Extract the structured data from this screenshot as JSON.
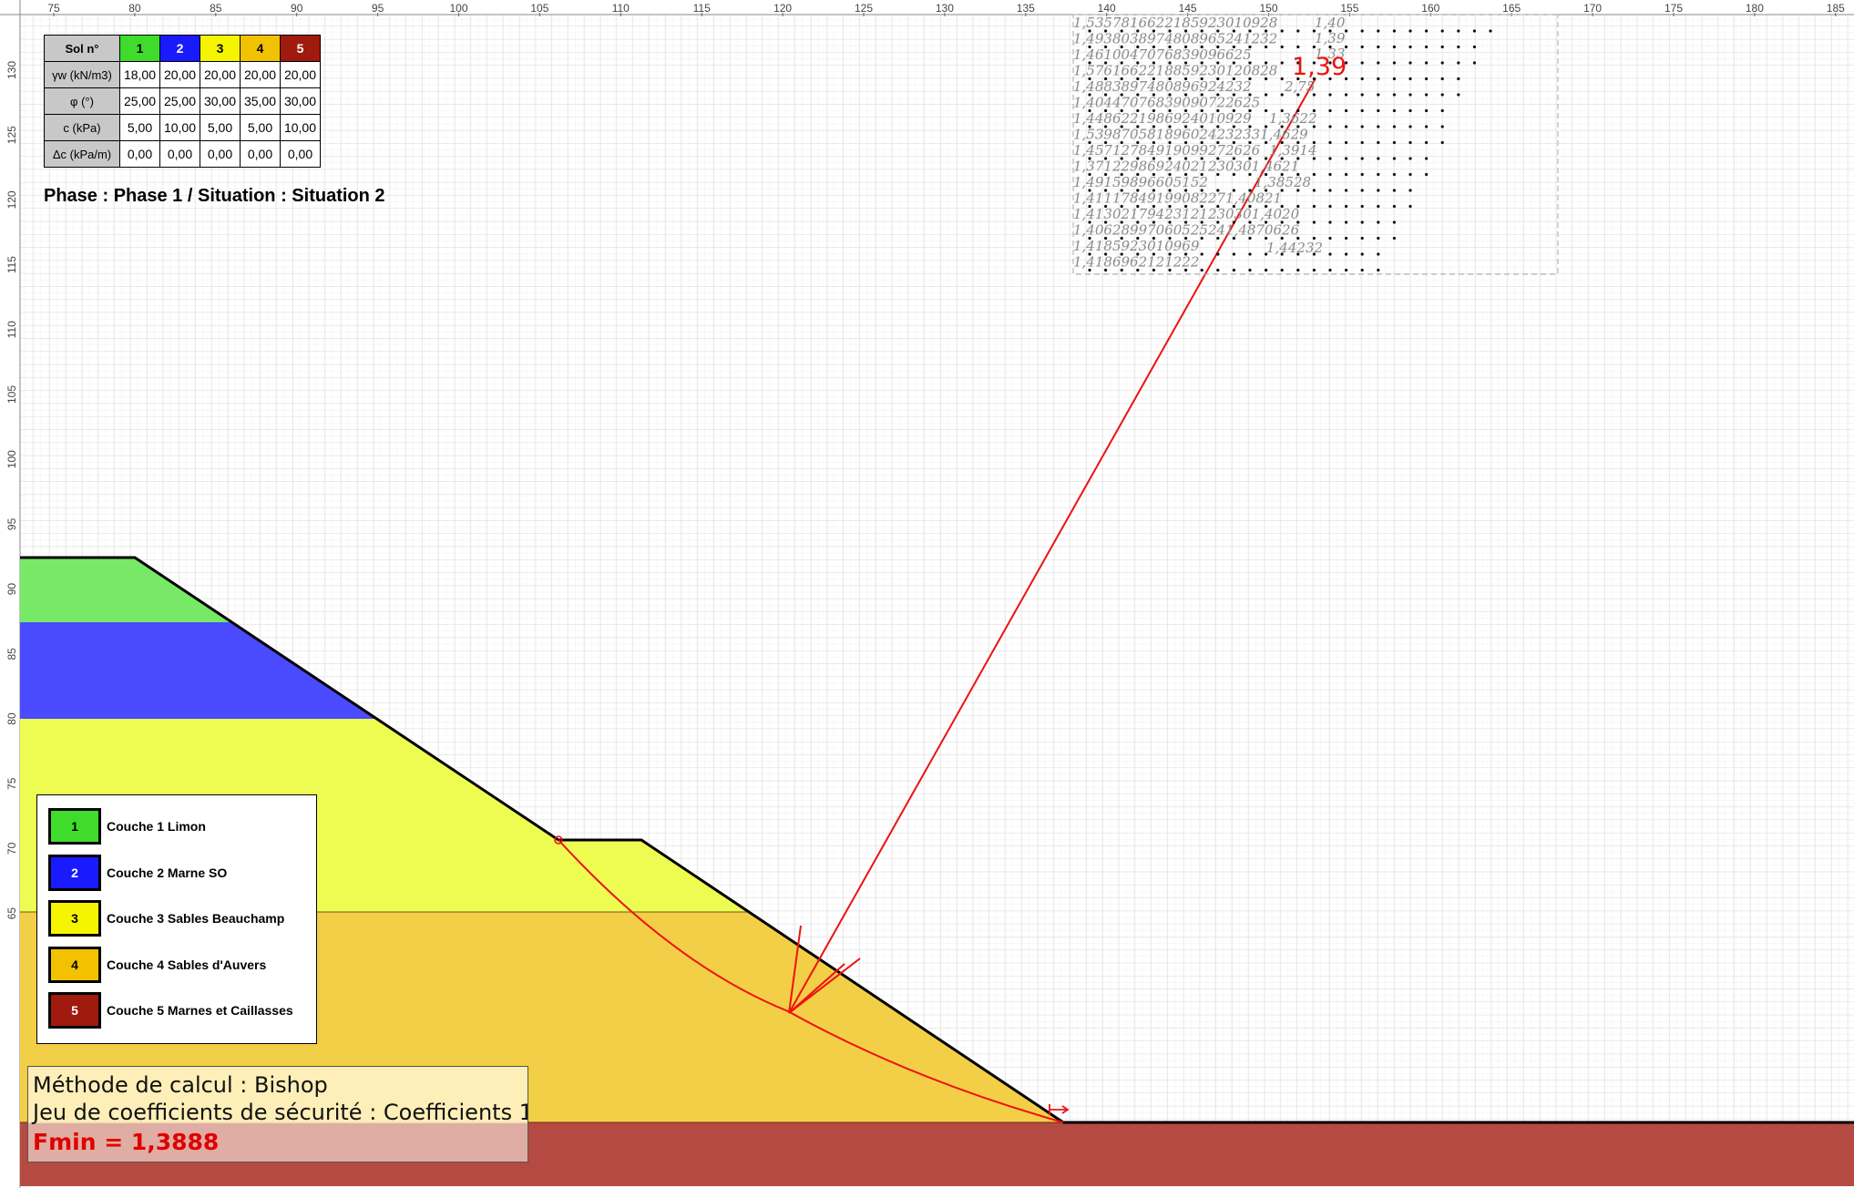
{
  "axes": {
    "x_ticks": [
      "75",
      "80",
      "85",
      "90",
      "95",
      "100",
      "105",
      "110",
      "115",
      "120",
      "125",
      "130",
      "135",
      "140",
      "145",
      "150",
      "155",
      "160",
      "165",
      "170",
      "175",
      "180",
      "185"
    ],
    "y_ticks": [
      "130",
      "125",
      "120",
      "115",
      "110",
      "105",
      "100",
      "95",
      "90",
      "85",
      "80",
      "75",
      "70",
      "65"
    ]
  },
  "soil_table": {
    "header": "Sol n°",
    "soils": [
      {
        "n": "1",
        "color": "#3fdc2c",
        "text_color": "#000000"
      },
      {
        "n": "2",
        "color": "#1a1aff",
        "text_color": "#ffffff"
      },
      {
        "n": "3",
        "color": "#f5f500",
        "text_color": "#000000"
      },
      {
        "n": "4",
        "color": "#f2c200",
        "text_color": "#000000"
      },
      {
        "n": "5",
        "color": "#a01a0e",
        "text_color": "#ffffff"
      }
    ],
    "rows": [
      {
        "label": "γw (kN/m3)",
        "values": [
          "18,00",
          "20,00",
          "20,00",
          "20,00",
          "20,00"
        ]
      },
      {
        "label": "φ (°)",
        "values": [
          "25,00",
          "25,00",
          "30,00",
          "35,00",
          "30,00"
        ]
      },
      {
        "label": "c (kPa)",
        "values": [
          "5,00",
          "10,00",
          "5,00",
          "5,00",
          "10,00"
        ]
      },
      {
        "label": "Δc (kPa/m)",
        "values": [
          "0,00",
          "0,00",
          "0,00",
          "0,00",
          "0,00"
        ]
      }
    ]
  },
  "phase_text": "Phase : Phase 1 / Situation : Situation 2",
  "legend": [
    {
      "n": "1",
      "label": "Couche 1 Limon"
    },
    {
      "n": "2",
      "label": "Couche 2 Marne  SO"
    },
    {
      "n": "3",
      "label": "Couche 3 Sables Beauchamp"
    },
    {
      "n": "4",
      "label": "Couche 4 Sables d'Auvers"
    },
    {
      "n": "5",
      "label": "Couche 5 Marnes et Caillasses"
    }
  ],
  "method": {
    "line1": "Méthode de calcul : Bishop",
    "line2": "Jeu de coefficients de sécurité : Coefficients 1",
    "fmin": "Fmin = 1,3888"
  },
  "min_factor_label": "1,39",
  "grid_factors": [
    "1,5357816622185923010928",
    "1,4938038974808965241232",
    "1,4610047076839096625",
    "1,5761662218859230120828",
    "1,4883897480896924232",
    "1,40447076839090722625",
    "1,4486221986924010929",
    "1,539870581896024232331,4629",
    "1,45712784919099272626",
    "1,37122986924021230301,4621",
    "1,49159896605152",
    "1,41117849199082271,40821",
    "1,41302179423121230301,4020",
    "1,40628997060525241,4870626",
    "1,4185923010969",
    "1,4186962121222",
    "1,40",
    "1,39",
    "1,33",
    "2,75",
    "1,3622",
    "1,3914",
    "1,38528",
    "1,44232"
  ]
}
